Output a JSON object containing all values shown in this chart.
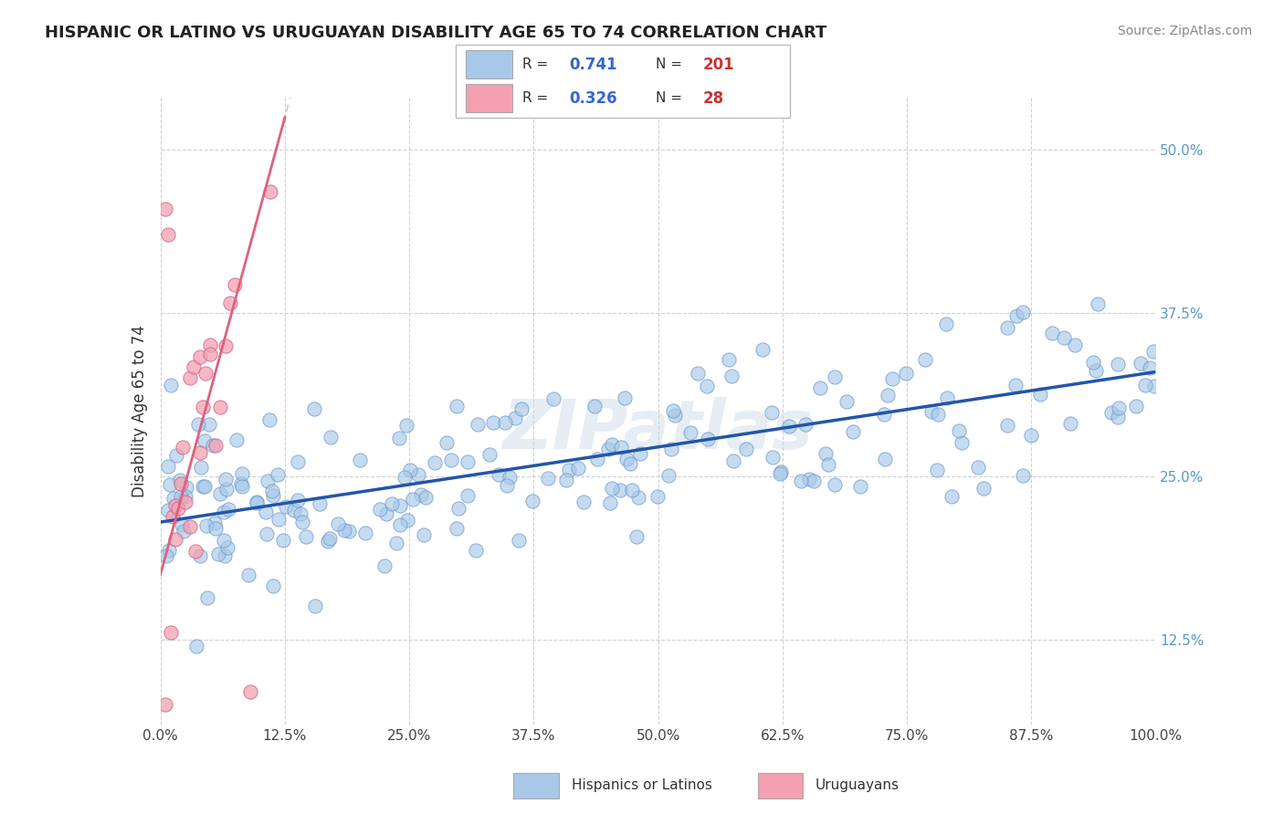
{
  "title": "HISPANIC OR LATINO VS URUGUAYAN DISABILITY AGE 65 TO 74 CORRELATION CHART",
  "source": "Source: ZipAtlas.com",
  "ylabel": "Disability Age 65 to 74",
  "xlim": [
    0.0,
    1.0
  ],
  "ylim": [
    0.06,
    0.54
  ],
  "xtick_labels": [
    "0.0%",
    "12.5%",
    "25.0%",
    "37.5%",
    "50.0%",
    "62.5%",
    "75.0%",
    "87.5%",
    "100.0%"
  ],
  "xtick_vals": [
    0.0,
    0.125,
    0.25,
    0.375,
    0.5,
    0.625,
    0.75,
    0.875,
    1.0
  ],
  "ytick_labels": [
    "12.5%",
    "25.0%",
    "37.5%",
    "50.0%"
  ],
  "ytick_vals": [
    0.125,
    0.25,
    0.375,
    0.5
  ],
  "blue_R": "0.741",
  "blue_N": "201",
  "pink_R": "0.326",
  "pink_N": "28",
  "blue_scatter_color": "#a8c8e8",
  "blue_line_color": "#2255aa",
  "pink_scatter_color": "#f4a0b0",
  "pink_line_color": "#e06080",
  "tick_color": "#5599cc",
  "legend_label_blue": "Hispanics or Latinos",
  "legend_label_pink": "Uruguayans",
  "watermark": "ZIPatlas",
  "blue_intercept": 0.215,
  "blue_slope": 0.115,
  "pink_intercept": 0.175,
  "pink_slope": 2.8,
  "pink_line_x_end": 0.125
}
